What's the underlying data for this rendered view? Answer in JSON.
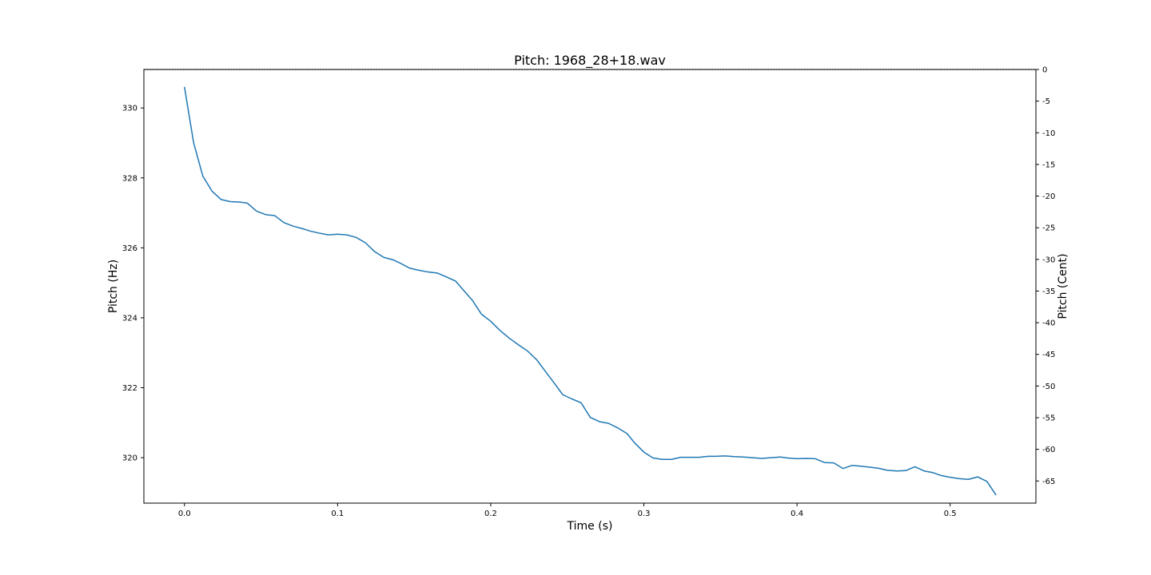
{
  "chart_data": {
    "type": "line",
    "title": "Pitch: 1968_28+18.wav",
    "xlabel": "Time (s)",
    "ylabel": "Pitch (Hz)",
    "y2label": "Pitch (Cent)",
    "xlim": [
      -0.0265,
      0.556
    ],
    "ylim": [
      318.7,
      331.1
    ],
    "y2lim": [
      -68.5,
      0
    ],
    "xticks": [
      0.0,
      0.1,
      0.2,
      0.3,
      0.4,
      0.5
    ],
    "xtick_labels": [
      "0.0",
      "0.1",
      "0.2",
      "0.3",
      "0.4",
      "0.5"
    ],
    "yticks": [
      320,
      322,
      324,
      326,
      328,
      330
    ],
    "ytick_labels": [
      "320",
      "322",
      "324",
      "326",
      "328",
      "330"
    ],
    "y2ticks": [
      0,
      -5,
      -10,
      -15,
      -20,
      -25,
      -30,
      -35,
      -40,
      -45,
      -50,
      -55,
      -60,
      -65
    ],
    "y2tick_labels": [
      "0",
      "-5",
      "-10",
      "-15",
      "-20",
      "-25",
      "-30",
      "-35",
      "-40",
      "-45",
      "-50",
      "-55",
      "-60",
      "-65"
    ],
    "grid": false,
    "series_color": "#1f77b4",
    "reference_line_color": "#000000",
    "x": [
      0.0,
      0.006,
      0.012,
      0.018,
      0.024,
      0.03,
      0.036,
      0.041,
      0.047,
      0.053,
      0.059,
      0.065,
      0.071,
      0.077,
      0.082,
      0.088,
      0.094,
      0.1,
      0.106,
      0.112,
      0.118,
      0.124,
      0.13,
      0.136,
      0.141,
      0.147,
      0.153,
      0.159,
      0.165,
      0.171,
      0.177,
      0.183,
      0.188,
      0.194,
      0.2,
      0.206,
      0.212,
      0.218,
      0.224,
      0.23,
      0.236,
      0.242,
      0.247,
      0.253,
      0.259,
      0.265,
      0.271,
      0.277,
      0.283,
      0.289,
      0.294,
      0.3,
      0.306,
      0.312,
      0.318,
      0.324,
      0.33,
      0.336,
      0.342,
      0.347,
      0.353,
      0.359,
      0.365,
      0.371,
      0.377,
      0.383,
      0.389,
      0.394,
      0.4,
      0.406,
      0.412,
      0.418,
      0.424,
      0.43,
      0.436,
      0.441,
      0.447,
      0.453,
      0.459,
      0.465,
      0.471,
      0.477,
      0.483,
      0.489,
      0.494,
      0.5,
      0.506,
      0.512,
      0.518,
      0.524,
      0.53
    ],
    "values": [
      330.6,
      329.0,
      328.05,
      327.62,
      327.38,
      327.32,
      327.31,
      327.28,
      327.05,
      326.95,
      326.92,
      326.72,
      326.62,
      326.55,
      326.48,
      326.42,
      326.37,
      326.39,
      326.37,
      326.3,
      326.15,
      325.9,
      325.73,
      325.66,
      325.56,
      325.42,
      325.36,
      325.31,
      325.28,
      325.17,
      325.05,
      324.75,
      324.5,
      324.1,
      323.9,
      323.64,
      323.42,
      323.23,
      323.05,
      322.8,
      322.45,
      322.1,
      321.8,
      321.68,
      321.57,
      321.15,
      321.03,
      320.98,
      320.85,
      320.69,
      320.42,
      320.16,
      319.99,
      319.95,
      319.95,
      320.01,
      320.01,
      320.01,
      320.04,
      320.04,
      320.05,
      320.03,
      320.02,
      320.0,
      319.98,
      320.0,
      320.02,
      319.99,
      319.97,
      319.98,
      319.97,
      319.86,
      319.85,
      319.69,
      319.78,
      319.76,
      319.73,
      319.7,
      319.64,
      319.62,
      319.63,
      319.74,
      319.62,
      319.57,
      319.49,
      319.44,
      319.4,
      319.38,
      319.45,
      319.32,
      318.93
    ]
  }
}
